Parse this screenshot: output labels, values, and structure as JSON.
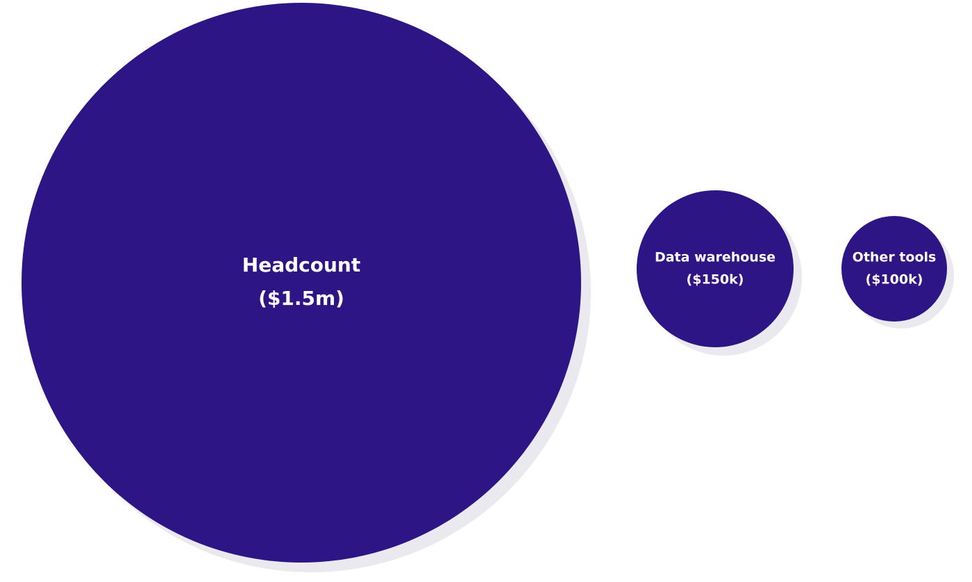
{
  "colors": {
    "bubble_fill": "#2e1585",
    "shadow": "#e9e9ef",
    "label": "#ffffff",
    "background": "#ffffff"
  },
  "chart_data": {
    "type": "bubble",
    "unit": "USD",
    "grid": false,
    "legend": "none",
    "series": [
      {
        "category": "Headcount",
        "value": 1500000,
        "value_label": "($1.5m)"
      },
      {
        "category": "Data warehouse",
        "value": 150000,
        "value_label": "($150k)"
      },
      {
        "category": "Other tools",
        "value": 100000,
        "value_label": "($100k)"
      }
    ]
  }
}
